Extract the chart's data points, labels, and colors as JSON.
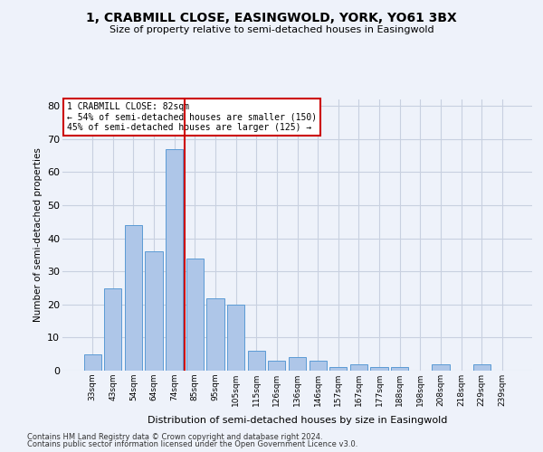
{
  "title_line1": "1, CRABMILL CLOSE, EASINGWOLD, YORK, YO61 3BX",
  "title_line2": "Size of property relative to semi-detached houses in Easingwold",
  "xlabel": "Distribution of semi-detached houses by size in Easingwold",
  "ylabel": "Number of semi-detached properties",
  "categories": [
    "33sqm",
    "43sqm",
    "54sqm",
    "64sqm",
    "74sqm",
    "85sqm",
    "95sqm",
    "105sqm",
    "115sqm",
    "126sqm",
    "136sqm",
    "146sqm",
    "157sqm",
    "167sqm",
    "177sqm",
    "188sqm",
    "198sqm",
    "208sqm",
    "218sqm",
    "229sqm",
    "239sqm"
  ],
  "values": [
    5,
    25,
    44,
    36,
    67,
    34,
    22,
    20,
    6,
    3,
    4,
    3,
    1,
    2,
    1,
    1,
    0,
    2,
    0,
    2,
    0
  ],
  "bar_color": "#aec6e8",
  "bar_edgecolor": "#5b9bd5",
  "redline_x": 4.5,
  "marker_color": "#cc0000",
  "annotation_text": "1 CRABMILL CLOSE: 82sqm\n← 54% of semi-detached houses are smaller (150)\n45% of semi-detached houses are larger (125) →",
  "annotation_box_color": "#ffffff",
  "annotation_box_edgecolor": "#cc0000",
  "ylim": [
    0,
    82
  ],
  "yticks": [
    0,
    10,
    20,
    30,
    40,
    50,
    60,
    70,
    80
  ],
  "grid_color": "#c8d0e0",
  "footer_line1": "Contains HM Land Registry data © Crown copyright and database right 2024.",
  "footer_line2": "Contains public sector information licensed under the Open Government Licence v3.0.",
  "bg_color": "#eef2fa"
}
